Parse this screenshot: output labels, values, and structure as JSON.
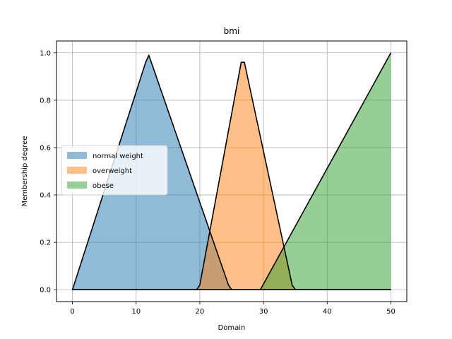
{
  "chart_data": {
    "type": "area",
    "title": "bmi",
    "xlabel": "Domain",
    "ylabel": "Membership degree",
    "xlim": [
      -2.5,
      52.5
    ],
    "ylim": [
      -0.05,
      1.05
    ],
    "xticks": [
      0,
      10,
      20,
      30,
      40,
      50
    ],
    "yticks": [
      0.0,
      0.2,
      0.4,
      0.6,
      0.8,
      1.0
    ],
    "xtick_labels": [
      "0",
      "10",
      "20",
      "30",
      "40",
      "50"
    ],
    "ytick_labels": [
      "0.0",
      "0.2",
      "0.4",
      "0.6",
      "0.8",
      "1.0"
    ],
    "grid": true,
    "legend_position": "center-left",
    "series": [
      {
        "name": "normal weight",
        "color": "#1f77b4",
        "points": [
          [
            0,
            0
          ],
          [
            11.5,
            0.96
          ],
          [
            12,
            0.99
          ],
          [
            24.5,
            0.02
          ],
          [
            25,
            0
          ],
          [
            50,
            0
          ]
        ]
      },
      {
        "name": "overweight",
        "color": "#ff7f0e",
        "points": [
          [
            0,
            0
          ],
          [
            19.5,
            0
          ],
          [
            20,
            0.02
          ],
          [
            26.5,
            0.96
          ],
          [
            27,
            0.96
          ],
          [
            34.5,
            0.02
          ],
          [
            35,
            0
          ],
          [
            50,
            0
          ]
        ]
      },
      {
        "name": "obese",
        "color": "#2ca02c",
        "points": [
          [
            0,
            0
          ],
          [
            29.5,
            0
          ],
          [
            50,
            1.0
          ]
        ]
      }
    ]
  }
}
